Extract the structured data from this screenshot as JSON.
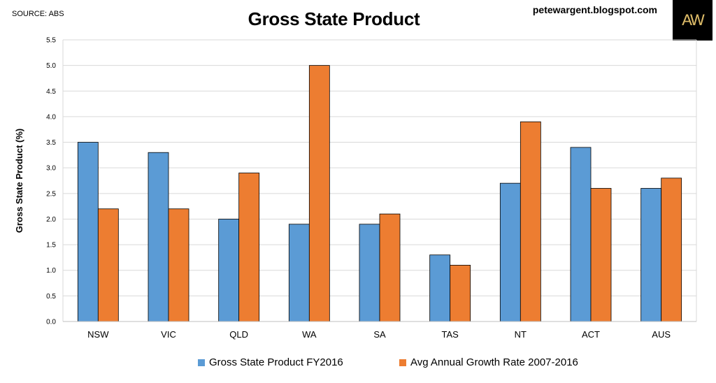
{
  "header": {
    "source": "SOURCE: ABS",
    "site": "petewargent.blogspot.com",
    "logo_text": "AW"
  },
  "colors": {
    "series1": "#5b9bd5",
    "series2": "#ed7d31",
    "grid": "#d9d9d9",
    "logo_bg": "#000000"
  },
  "chart_data": {
    "type": "bar",
    "title": "Gross State Product",
    "ylabel": "Gross State Product (%)",
    "xlabel": "",
    "ylim": [
      0,
      5.5
    ],
    "yticks": [
      "0.0",
      "0.5",
      "1.0",
      "1.5",
      "2.0",
      "2.5",
      "3.0",
      "3.5",
      "4.0",
      "4.5",
      "5.0",
      "5.5"
    ],
    "grid": true,
    "legend_position": "bottom",
    "categories": [
      "NSW",
      "VIC",
      "QLD",
      "WA",
      "SA",
      "TAS",
      "NT",
      "ACT",
      "AUS"
    ],
    "series": [
      {
        "name": "Gross State Product FY2016",
        "color": "#5b9bd5",
        "values": [
          3.5,
          3.3,
          2.0,
          1.9,
          1.9,
          1.3,
          2.7,
          3.4,
          2.6
        ]
      },
      {
        "name": "Avg Annual Growth Rate 2007-2016",
        "color": "#ed7d31",
        "values": [
          2.2,
          2.2,
          2.9,
          5.0,
          2.1,
          1.1,
          3.9,
          2.6,
          2.8
        ]
      }
    ]
  }
}
